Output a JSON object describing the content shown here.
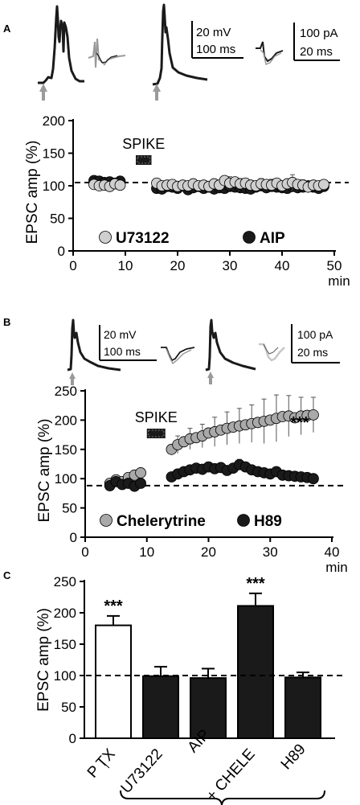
{
  "panels": {
    "A": {
      "letter": "A",
      "scalebars": {
        "current_clamp": {
          "voltage": "20 mV",
          "time": "100 ms"
        },
        "voltage_clamp": {
          "current": "100 pA",
          "time": "20 ms"
        }
      }
    },
    "B": {
      "letter": "B",
      "scalebars": {
        "current_clamp": {
          "voltage": "20 mV",
          "time": "100 ms"
        },
        "voltage_clamp": {
          "current": "100 pA",
          "time": "20 ms"
        }
      }
    },
    "C": {
      "letter": "C"
    }
  },
  "colors": {
    "black": "#1a1a1a",
    "light_gray": "#cfcfcf",
    "mid_gray": "#a9a9a9",
    "arrow": "#9a9a9a"
  },
  "chart_data": [
    {
      "id": "A",
      "type": "scatter",
      "ylabel": "EPSC amp (%)",
      "xlabel": "min",
      "xlim": [
        0,
        50
      ],
      "ylim": [
        0,
        200
      ],
      "xticks": [
        "0",
        "10",
        "20",
        "30",
        "40",
        "50"
      ],
      "yticks": [
        "0",
        "50",
        "100",
        "150",
        "200"
      ],
      "annotation": "SPIKE",
      "spike_interval": [
        12,
        15
      ],
      "baseline": 105,
      "legend_position": "bottom",
      "series": [
        {
          "name": "U73122",
          "color": "#cfcfcf",
          "points": [
            [
              4,
              102
            ],
            [
              5,
              100
            ],
            [
              6,
              101
            ],
            [
              7,
              99
            ],
            [
              8,
              103
            ],
            [
              9,
              101
            ],
            [
              16,
              104
            ],
            [
              17,
              100
            ],
            [
              18,
              101
            ],
            [
              19,
              102
            ],
            [
              20,
              99
            ],
            [
              21,
              101
            ],
            [
              22,
              100
            ],
            [
              23,
              103
            ],
            [
              24,
              100
            ],
            [
              25,
              101
            ],
            [
              26,
              99
            ],
            [
              27,
              103
            ],
            [
              28,
              101
            ],
            [
              29,
              108
            ],
            [
              30,
              104
            ],
            [
              31,
              106
            ],
            [
              32,
              103
            ],
            [
              33,
              104
            ],
            [
              34,
              101
            ],
            [
              35,
              100
            ],
            [
              36,
              103
            ],
            [
              37,
              102
            ],
            [
              38,
              101
            ],
            [
              39,
              104
            ],
            [
              40,
              100
            ],
            [
              41,
              103
            ],
            [
              42,
              105
            ],
            [
              43,
              102
            ],
            [
              44,
              101
            ],
            [
              45,
              98
            ],
            [
              46,
              101
            ],
            [
              47,
              100
            ],
            [
              48,
              102
            ]
          ],
          "errors": [
            [
              16,
              5
            ],
            [
              18,
              6
            ],
            [
              20,
              5
            ],
            [
              22,
              6
            ],
            [
              24,
              5
            ],
            [
              26,
              6
            ],
            [
              28,
              7
            ],
            [
              30,
              10
            ],
            [
              32,
              8
            ],
            [
              34,
              7
            ],
            [
              36,
              8
            ],
            [
              38,
              9
            ],
            [
              40,
              7
            ],
            [
              42,
              12
            ],
            [
              44,
              8
            ],
            [
              46,
              7
            ]
          ]
        },
        {
          "name": "AIP",
          "color": "#1a1a1a",
          "points": [
            [
              4,
              108
            ],
            [
              5,
              107
            ],
            [
              6,
              105
            ],
            [
              7,
              106
            ],
            [
              8,
              104
            ],
            [
              9,
              107
            ],
            [
              16,
              96
            ],
            [
              17,
              95
            ],
            [
              18,
              99
            ],
            [
              19,
              98
            ],
            [
              20,
              96
            ],
            [
              21,
              100
            ],
            [
              22,
              94
            ],
            [
              23,
              97
            ],
            [
              24,
              99
            ],
            [
              25,
              96
            ],
            [
              26,
              98
            ],
            [
              27,
              95
            ],
            [
              28,
              97
            ],
            [
              29,
              96
            ],
            [
              30,
              99
            ],
            [
              31,
              98
            ],
            [
              32,
              97
            ],
            [
              33,
              96
            ],
            [
              34,
              95
            ],
            [
              35,
              98
            ],
            [
              36,
              100
            ],
            [
              37,
              97
            ],
            [
              38,
              99
            ],
            [
              39,
              98
            ],
            [
              40,
              97
            ],
            [
              41,
              96
            ],
            [
              42,
              99
            ],
            [
              43,
              97
            ],
            [
              44,
              98
            ],
            [
              45,
              100
            ],
            [
              46,
              98
            ],
            [
              47,
              96
            ],
            [
              48,
              99
            ]
          ],
          "errors": [
            [
              17,
              6
            ],
            [
              21,
              6
            ],
            [
              25,
              7
            ],
            [
              29,
              6
            ],
            [
              33,
              6
            ],
            [
              37,
              6
            ],
            [
              41,
              6
            ],
            [
              45,
              6
            ]
          ]
        }
      ]
    },
    {
      "id": "B",
      "type": "scatter",
      "ylabel": "EPSC amp (%)",
      "xlabel": "min",
      "xlim": [
        0,
        40
      ],
      "ylim": [
        0,
        250
      ],
      "xticks": [
        "0",
        "10",
        "20",
        "30",
        "40"
      ],
      "yticks": [
        "0",
        "50",
        "100",
        "150",
        "200",
        "250"
      ],
      "annotation": "SPIKE",
      "significance": "***",
      "spike_interval": [
        10,
        13
      ],
      "baseline": 88,
      "legend_position": "bottom",
      "series": [
        {
          "name": "Chelerytrine",
          "color": "#a9a9a9",
          "points": [
            [
              4,
              92
            ],
            [
              5,
              98
            ],
            [
              6,
              95
            ],
            [
              7,
              102
            ],
            [
              8,
              106
            ],
            [
              9,
              110
            ],
            [
              14,
              150
            ],
            [
              15,
              158
            ],
            [
              16,
              163
            ],
            [
              17,
              168
            ],
            [
              18,
              170
            ],
            [
              19,
              173
            ],
            [
              20,
              178
            ],
            [
              21,
              180
            ],
            [
              22,
              183
            ],
            [
              23,
              186
            ],
            [
              24,
              188
            ],
            [
              25,
              190
            ],
            [
              26,
              192
            ],
            [
              27,
              194
            ],
            [
              28,
              196
            ],
            [
              29,
              198
            ],
            [
              30,
              200
            ],
            [
              31,
              203
            ],
            [
              32,
              206
            ],
            [
              33,
              207
            ],
            [
              34,
              204
            ],
            [
              35,
              207
            ],
            [
              36,
              208
            ],
            [
              37,
              209
            ]
          ],
          "errors": [
            [
              15,
              15
            ],
            [
              17,
              18
            ],
            [
              19,
              20
            ],
            [
              21,
              25
            ],
            [
              23,
              28
            ],
            [
              25,
              30
            ],
            [
              27,
              32
            ],
            [
              29,
              38
            ],
            [
              31,
              40
            ],
            [
              33,
              35
            ],
            [
              35,
              32
            ],
            [
              37,
              30
            ]
          ]
        },
        {
          "name": "H89",
          "color": "#1a1a1a",
          "points": [
            [
              4,
              88
            ],
            [
              5,
              95
            ],
            [
              6,
              90
            ],
            [
              7,
              92
            ],
            [
              8,
              87
            ],
            [
              9,
              92
            ],
            [
              14,
              103
            ],
            [
              15,
              108
            ],
            [
              16,
              112
            ],
            [
              17,
              115
            ],
            [
              18,
              118
            ],
            [
              19,
              116
            ],
            [
              20,
              120
            ],
            [
              21,
              117
            ],
            [
              22,
              119
            ],
            [
              23,
              114
            ],
            [
              24,
              118
            ],
            [
              25,
              124
            ],
            [
              26,
              120
            ],
            [
              27,
              115
            ],
            [
              28,
              112
            ],
            [
              29,
              110
            ],
            [
              30,
              108
            ],
            [
              31,
              112
            ],
            [
              32,
              106
            ],
            [
              33,
              105
            ],
            [
              34,
              104
            ],
            [
              35,
              103
            ],
            [
              36,
              102
            ],
            [
              37,
              100
            ]
          ],
          "errors": [
            [
              15,
              6
            ],
            [
              17,
              7
            ],
            [
              19,
              8
            ],
            [
              21,
              8
            ],
            [
              23,
              8
            ],
            [
              25,
              9
            ],
            [
              27,
              8
            ],
            [
              29,
              7
            ],
            [
              31,
              7
            ],
            [
              33,
              6
            ],
            [
              35,
              6
            ]
          ]
        }
      ]
    },
    {
      "id": "C",
      "type": "bar",
      "ylabel": "EPSC amp (%)",
      "ylim": [
        0,
        250
      ],
      "yticks": [
        "0",
        "50",
        "100",
        "150",
        "200",
        "250"
      ],
      "baseline": 100,
      "categories": [
        "P TX",
        "U73122",
        "AIP",
        "+ CHELE",
        "H89"
      ],
      "category_subscript": "i",
      "values": [
        180,
        99,
        96,
        211,
        97
      ],
      "errors": [
        15,
        15,
        15,
        20,
        8
      ],
      "fills": [
        "#ffffff",
        "#1a1a1a",
        "#1a1a1a",
        "#1a1a1a",
        "#1a1a1a"
      ],
      "significance": [
        "***",
        "",
        "",
        "***",
        ""
      ]
    }
  ]
}
